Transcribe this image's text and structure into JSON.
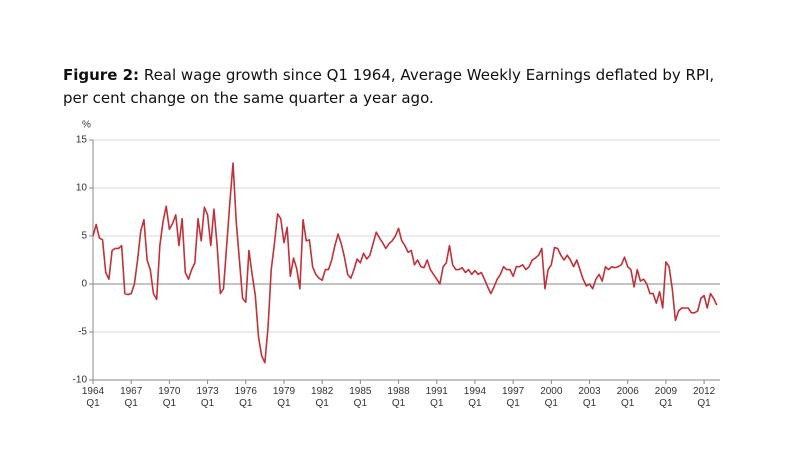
{
  "chart_data": {
    "type": "line",
    "figure_label": "Figure 2:",
    "title": "Real wage growth since Q1 1964, Average Weekly Earnings deflated by RPI, per cent change on the same quarter a year ago.",
    "ylabel": "%",
    "color": "#c0323a",
    "grid": true,
    "xlim": [
      1964,
      2013.25
    ],
    "ylim": [
      -10,
      15
    ],
    "yticks": [
      -10,
      -5,
      0,
      5,
      10,
      15
    ],
    "xticks": [
      {
        "value": 1964,
        "label": "1964\nQ1"
      },
      {
        "value": 1967,
        "label": "1967\nQ1"
      },
      {
        "value": 1970,
        "label": "1970\nQ1"
      },
      {
        "value": 1973,
        "label": "1973\nQ1"
      },
      {
        "value": 1976,
        "label": "1976\nQ1"
      },
      {
        "value": 1979,
        "label": "1979\nQ1"
      },
      {
        "value": 1982,
        "label": "1982\nQ1"
      },
      {
        "value": 1985,
        "label": "1985\nQ1"
      },
      {
        "value": 1988,
        "label": "1988\nQ1"
      },
      {
        "value": 1991,
        "label": "1991\nQ1"
      },
      {
        "value": 1994,
        "label": "1994\nQ1"
      },
      {
        "value": 1997,
        "label": "1997\nQ1"
      },
      {
        "value": 2000,
        "label": "2000\nQ1"
      },
      {
        "value": 2003,
        "label": "2003\nQ1"
      },
      {
        "value": 2006,
        "label": "2006\nQ1"
      },
      {
        "value": 2009,
        "label": "2009\nQ1"
      },
      {
        "value": 2012,
        "label": "2012\nQ1"
      }
    ],
    "x": [
      1964,
      1964.25,
      1964.5,
      1964.75,
      1965,
      1965.25,
      1965.5,
      1965.75,
      1966,
      1966.25,
      1966.5,
      1966.75,
      1967,
      1967.25,
      1967.5,
      1967.75,
      1968,
      1968.25,
      1968.5,
      1968.75,
      1969,
      1969.25,
      1969.5,
      1969.75,
      1970,
      1970.25,
      1970.5,
      1970.75,
      1971,
      1971.25,
      1971.5,
      1971.75,
      1972,
      1972.25,
      1972.5,
      1972.75,
      1973,
      1973.25,
      1973.5,
      1973.75,
      1974,
      1974.25,
      1974.5,
      1974.75,
      1975,
      1975.25,
      1975.5,
      1975.75,
      1976,
      1976.25,
      1976.5,
      1976.75,
      1977,
      1977.25,
      1977.5,
      1977.75,
      1978,
      1978.25,
      1978.5,
      1978.75,
      1979,
      1979.25,
      1979.5,
      1979.75,
      1980,
      1980.25,
      1980.5,
      1980.75,
      1981,
      1981.25,
      1981.5,
      1981.75,
      1982,
      1982.25,
      1982.5,
      1982.75,
      1983,
      1983.25,
      1983.5,
      1983.75,
      1984,
      1984.25,
      1984.5,
      1984.75,
      1985,
      1985.25,
      1985.5,
      1985.75,
      1986,
      1986.25,
      1986.5,
      1986.75,
      1987,
      1987.25,
      1987.5,
      1987.75,
      1988,
      1988.25,
      1988.5,
      1988.75,
      1989,
      1989.25,
      1989.5,
      1989.75,
      1990,
      1990.25,
      1990.5,
      1990.75,
      1991,
      1991.25,
      1991.5,
      1991.75,
      1992,
      1992.25,
      1992.5,
      1992.75,
      1993,
      1993.25,
      1993.5,
      1993.75,
      1994,
      1994.25,
      1994.5,
      1994.75,
      1995,
      1995.25,
      1995.5,
      1995.75,
      1996,
      1996.25,
      1996.5,
      1996.75,
      1997,
      1997.25,
      1997.5,
      1997.75,
      1998,
      1998.25,
      1998.5,
      1998.75,
      1999,
      1999.25,
      1999.5,
      1999.75,
      2000,
      2000.25,
      2000.5,
      2000.75,
      2001,
      2001.25,
      2001.5,
      2001.75,
      2002,
      2002.25,
      2002.5,
      2002.75,
      2003,
      2003.25,
      2003.5,
      2003.75,
      2004,
      2004.25,
      2004.5,
      2004.75,
      2005,
      2005.25,
      2005.5,
      2005.75,
      2006,
      2006.25,
      2006.5,
      2006.75,
      2007,
      2007.25,
      2007.5,
      2007.75,
      2008,
      2008.25,
      2008.5,
      2008.75,
      2009,
      2009.25,
      2009.5,
      2009.75,
      2010,
      2010.25,
      2010.5,
      2010.75,
      2011,
      2011.25,
      2011.5,
      2011.75,
      2012,
      2012.25,
      2012.5,
      2012.75,
      2013
    ],
    "values": [
      5.0,
      6.2,
      4.8,
      4.6,
      1.2,
      0.5,
      3.5,
      3.7,
      3.7,
      4.0,
      -1.0,
      -1.1,
      -1.0,
      0.0,
      2.5,
      5.5,
      6.7,
      2.5,
      1.5,
      -1.0,
      -1.6,
      4.0,
      6.5,
      8.1,
      5.7,
      6.3,
      7.2,
      4.0,
      6.8,
      1.2,
      0.5,
      1.5,
      2.2,
      6.8,
      4.5,
      8.0,
      7.2,
      4.0,
      7.8,
      4.0,
      -1.0,
      -0.5,
      4.0,
      8.5,
      12.6,
      6.5,
      2.5,
      -1.5,
      -1.9,
      3.5,
      1.0,
      -1.2,
      -5.5,
      -7.5,
      -8.2,
      -4.5,
      1.5,
      4.2,
      7.3,
      6.8,
      4.3,
      5.9,
      0.8,
      2.7,
      1.6,
      -0.5,
      6.7,
      4.5,
      4.6,
      1.8,
      1.0,
      0.6,
      0.4,
      1.5,
      1.5,
      2.5,
      4.0,
      5.2,
      4.2,
      2.8,
      1.0,
      0.6,
      1.5,
      2.6,
      2.2,
      3.2,
      2.6,
      3.0,
      4.2,
      5.4,
      4.8,
      4.3,
      3.7,
      4.2,
      4.5,
      5.0,
      5.8,
      4.5,
      4.0,
      3.3,
      3.5,
      2.0,
      2.5,
      1.8,
      1.7,
      2.5,
      1.5,
      1.0,
      0.5,
      0.0,
      1.8,
      2.2,
      4.0,
      2.0,
      1.5,
      1.5,
      1.7,
      1.2,
      1.5,
      1.0,
      1.4,
      1.0,
      1.2,
      0.5,
      -0.3,
      -1.0,
      -0.3,
      0.5,
      1.0,
      1.8,
      1.5,
      1.5,
      0.8,
      1.8,
      1.8,
      2.0,
      1.5,
      1.8,
      2.5,
      2.7,
      3.0,
      3.7,
      -0.5,
      1.5,
      2.0,
      3.8,
      3.7,
      3.0,
      2.5,
      3.0,
      2.5,
      1.8,
      2.5,
      1.5,
      0.5,
      -0.2,
      0.0,
      -0.5,
      0.5,
      1.0,
      0.3,
      1.8,
      1.5,
      1.8,
      1.7,
      1.8,
      2.0,
      2.8,
      1.8,
      1.5,
      -0.3,
      1.5,
      0.3,
      0.5,
      0.0,
      -1.0,
      -1.0,
      -2.0,
      -0.8,
      -2.5,
      2.3,
      1.8,
      -0.5,
      -3.8,
      -2.8,
      -2.5,
      -2.5,
      -2.5,
      -3.0,
      -3.0,
      -2.8,
      -1.5,
      -1.2,
      -2.5,
      -1.0,
      -1.5,
      -2.2
    ]
  }
}
